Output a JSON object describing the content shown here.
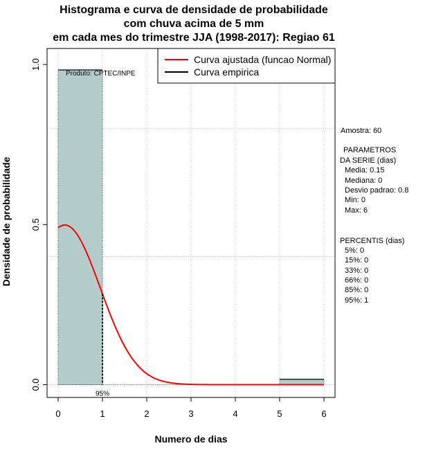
{
  "chart_data": {
    "type": "bar",
    "title_lines": [
      "Histograma e curva de densidade de probabilidade",
      "com chuva acima de 5 mm",
      "em cada mes do trimestre JJA (1998-2017): Regiao 61"
    ],
    "xlabel": "Numero de dias",
    "ylabel": "Densidade de probabilidade",
    "xlim": [
      -0.25,
      6.25
    ],
    "ylim": [
      -0.04,
      1.05
    ],
    "xticks": [
      "0",
      "1",
      "2",
      "3",
      "4",
      "5",
      "6"
    ],
    "yticks": [
      "0.0",
      "0.5",
      "1.0"
    ],
    "xgrid": [
      0,
      1,
      2,
      3,
      4,
      5,
      6
    ],
    "ygrid": [
      0,
      0.4,
      0.8
    ],
    "bars": [
      {
        "x0": 0,
        "x1": 1,
        "value": 0.983
      },
      {
        "x0": 5,
        "x1": 6,
        "value": 0.0167
      }
    ],
    "normal_fit": {
      "mean": 0.15,
      "sd": 0.8
    },
    "percentile_marker": {
      "x": 1,
      "label": "95%"
    },
    "annotation": "Produto: CPTEC/INPE",
    "legend": {
      "position": "top-right",
      "entries": [
        {
          "label": "Curva ajustada (funcao Normal)",
          "color": "#ff0000"
        },
        {
          "label": "Curva empirica",
          "color": "#000000"
        }
      ]
    },
    "colors": {
      "bar": "#b4cccc",
      "curve": "#ff0000",
      "grid": "#bbbbbb"
    }
  },
  "stats": {
    "amostra": "Amostra: 60",
    "param_title_1": "PARAMETROS",
    "param_title_2": "DA SERIE (dias)",
    "media": "Media: 0.15",
    "mediana": "Mediana: 0",
    "desvio": "Desvio padrao: 0.8",
    "min": "Min: 0",
    "max": "Max: 6",
    "perc_title": "PERCENTIS (dias)",
    "p5": "5%: 0",
    "p15": "15%: 0",
    "p33": "33%: 0",
    "p66": "66%: 0",
    "p85": "85%: 0",
    "p95": "95%: 1"
  }
}
